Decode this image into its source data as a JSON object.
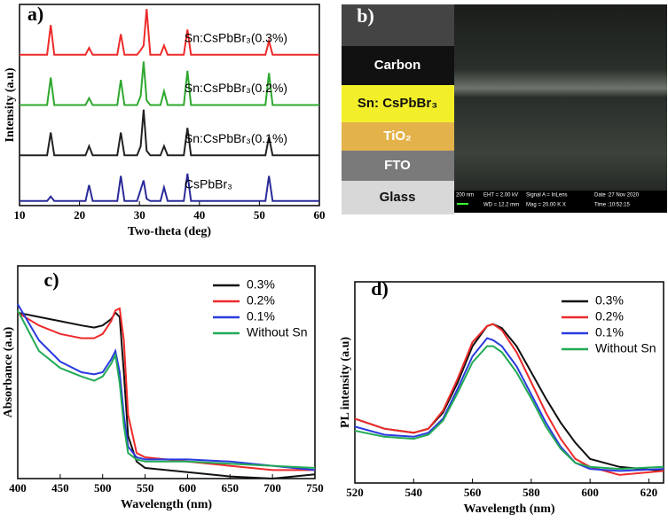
{
  "chart_data": [
    {
      "type": "line",
      "panel_label": "a)",
      "xlabel": "Two-theta (deg)",
      "ylabel": "Intensity (a.u)",
      "x": [
        10,
        14.6,
        15.2,
        15.8,
        21,
        21.6,
        22.2,
        26.3,
        26.9,
        27.5,
        29.6,
        30.2,
        30.7,
        31.2,
        31.8,
        33.5,
        34.1,
        34.7,
        37.4,
        38,
        38.6,
        51,
        51.6,
        52.2,
        60
      ],
      "xlim": [
        10,
        60
      ],
      "xticks": [
        10,
        20,
        30,
        40,
        50,
        60
      ],
      "ylim": [
        0,
        4.4
      ],
      "series": [
        {
          "name": "CsPbBr₃",
          "color": "#2b2b9a",
          "values": [
            0.1,
            0.1,
            0.2,
            0.1,
            0.1,
            0.45,
            0.1,
            0.1,
            0.65,
            0.1,
            0.1,
            0.35,
            0.55,
            0.15,
            0.1,
            0.1,
            0.4,
            0.1,
            0.1,
            0.7,
            0.1,
            0.1,
            0.65,
            0.1,
            0.1
          ]
        },
        {
          "name": "Sn:CsPbBr₃(0.1%)",
          "color": "#222222",
          "values": [
            1.1,
            1.1,
            1.6,
            1.1,
            1.1,
            1.3,
            1.1,
            1.1,
            1.6,
            1.1,
            1.1,
            1.3,
            2.1,
            1.2,
            1.1,
            1.1,
            1.3,
            1.1,
            1.1,
            1.7,
            1.1,
            1.1,
            1.5,
            1.1,
            1.1
          ]
        },
        {
          "name": "Sn:CsPbBr₃(0.2%)",
          "color": "#2fa82f",
          "values": [
            2.2,
            2.2,
            2.8,
            2.2,
            2.2,
            2.35,
            2.2,
            2.2,
            2.75,
            2.2,
            2.2,
            2.4,
            3.15,
            2.3,
            2.2,
            2.2,
            2.5,
            2.2,
            2.2,
            2.95,
            2.2,
            2.2,
            2.9,
            2.2,
            2.2
          ]
        },
        {
          "name": "Sn:CsPbBr₃(0.3%)",
          "color": "#ee2a2a",
          "values": [
            3.3,
            3.3,
            3.95,
            3.3,
            3.3,
            3.45,
            3.3,
            3.3,
            3.75,
            3.3,
            3.3,
            3.4,
            3.5,
            4.3,
            3.3,
            3.3,
            3.5,
            3.3,
            3.3,
            3.85,
            3.3,
            3.3,
            3.6,
            3.3,
            3.3
          ]
        }
      ]
    },
    {
      "type": "line",
      "panel_label": "c)",
      "xlabel": "Wavelength (nm)",
      "ylabel": "Absorbance (a.u)",
      "legend": "upper right",
      "x": [
        400,
        425,
        450,
        475,
        490,
        500,
        510,
        515,
        520,
        525,
        530,
        540,
        550,
        575,
        600,
        650,
        700,
        750
      ],
      "xlim": [
        400,
        750
      ],
      "xticks": [
        400,
        450,
        500,
        550,
        600,
        650,
        700,
        750
      ],
      "ylim": [
        0,
        1
      ],
      "series": [
        {
          "name": "0.3%",
          "color": "#111111",
          "values": [
            0.78,
            0.76,
            0.74,
            0.72,
            0.71,
            0.72,
            0.75,
            0.78,
            0.76,
            0.5,
            0.2,
            0.08,
            0.05,
            0.04,
            0.03,
            0.01,
            0.0,
            0.02
          ]
        },
        {
          "name": "0.2%",
          "color": "#ee2a2a",
          "values": [
            0.78,
            0.72,
            0.68,
            0.66,
            0.66,
            0.68,
            0.74,
            0.79,
            0.8,
            0.65,
            0.3,
            0.12,
            0.1,
            0.09,
            0.08,
            0.06,
            0.04,
            0.04
          ]
        },
        {
          "name": "0.1%",
          "color": "#2a3ae0",
          "values": [
            0.82,
            0.65,
            0.55,
            0.5,
            0.49,
            0.5,
            0.56,
            0.6,
            0.5,
            0.3,
            0.15,
            0.1,
            0.09,
            0.09,
            0.09,
            0.08,
            0.06,
            0.04
          ]
        },
        {
          "name": "Without Sn",
          "color": "#22aa55",
          "values": [
            0.79,
            0.6,
            0.52,
            0.48,
            0.46,
            0.48,
            0.54,
            0.58,
            0.45,
            0.25,
            0.12,
            0.09,
            0.08,
            0.08,
            0.08,
            0.07,
            0.06,
            0.05
          ]
        }
      ]
    },
    {
      "type": "line",
      "panel_label": "d)",
      "xlabel": "Wavelength (nm)",
      "ylabel": "PL intensity (a.u)",
      "legend": "upper right",
      "x": [
        520,
        530,
        540,
        545,
        550,
        555,
        560,
        565,
        567,
        570,
        575,
        580,
        585,
        590,
        595,
        600,
        610,
        625
      ],
      "xlim": [
        520,
        625
      ],
      "xticks": [
        520,
        540,
        560,
        580,
        600,
        620
      ],
      "ylim": [
        0,
        1
      ],
      "series": [
        {
          "name": "0.3%",
          "color": "#111111",
          "values": [
            0.32,
            0.27,
            0.25,
            0.27,
            0.35,
            0.5,
            0.68,
            0.78,
            0.79,
            0.77,
            0.68,
            0.55,
            0.42,
            0.3,
            0.2,
            0.12,
            0.08,
            0.06
          ]
        },
        {
          "name": "0.2%",
          "color": "#ee2a2a",
          "values": [
            0.32,
            0.27,
            0.25,
            0.27,
            0.36,
            0.52,
            0.7,
            0.78,
            0.79,
            0.76,
            0.65,
            0.5,
            0.35,
            0.22,
            0.12,
            0.08,
            0.04,
            0.06
          ]
        },
        {
          "name": "0.1%",
          "color": "#2a3ae0",
          "values": [
            0.28,
            0.24,
            0.23,
            0.25,
            0.32,
            0.47,
            0.63,
            0.72,
            0.71,
            0.68,
            0.58,
            0.44,
            0.3,
            0.18,
            0.1,
            0.07,
            0.06,
            0.07
          ]
        },
        {
          "name": "Without Sn",
          "color": "#22aa55",
          "values": [
            0.26,
            0.23,
            0.22,
            0.24,
            0.31,
            0.45,
            0.6,
            0.68,
            0.68,
            0.65,
            0.55,
            0.42,
            0.28,
            0.17,
            0.1,
            0.08,
            0.07,
            0.08
          ]
        }
      ]
    }
  ],
  "diagram": {
    "panel_label": "b)",
    "layers": [
      {
        "label": "Carbon",
        "color": "#111111",
        "text_color": "#ffffff"
      },
      {
        "label": "Sn: CsPbBr₃",
        "color": "#f2ef2a",
        "text_color": "#111111"
      },
      {
        "label": "TiO₂",
        "color": "#e3b24a",
        "text_color": "#ffffff"
      },
      {
        "label": "FTO",
        "color": "#7a7a7a",
        "text_color": "#ffffff"
      },
      {
        "label": "Glass",
        "color": "#d8d8d8",
        "text_color": "#111111"
      }
    ],
    "sem_info": [
      "200 nm",
      "EHT = 2.00 kV",
      "WD = 12.2 mm",
      "Signal A = InLens",
      "Mag = 20.00 K X",
      "Date :27 Nov 2020",
      "Time :10:52:15"
    ]
  }
}
